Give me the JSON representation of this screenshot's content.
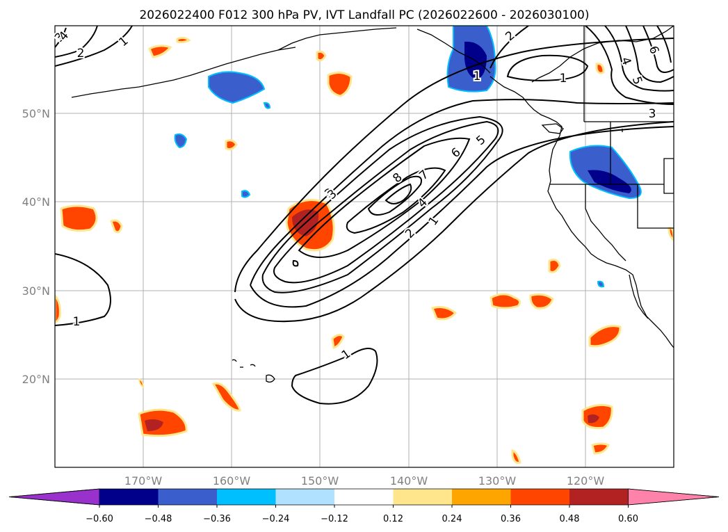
{
  "title": "2026022400 F012 300 hPa PV, IVT Landfall PC (2026022600 - 2026030100)",
  "lon_labels": [
    "170°W",
    "160°W",
    "150°W",
    "140°W",
    "130°W",
    "120°W"
  ],
  "lat_labels": [
    "50°N",
    "40°N",
    "30°N",
    "20°N"
  ],
  "colorbar": {
    "colors": [
      "#9932cc",
      "#00008b",
      "#3a5fcd",
      "#00bfff",
      "#b0e2ff",
      "#ffffff",
      "#ffe68c",
      "#ffa500",
      "#ff4500",
      "#b22222",
      "#ff82ab"
    ],
    "ticks": [
      "−0.60",
      "−0.48",
      "−0.36",
      "−0.24",
      "−0.12",
      "0.12",
      "0.24",
      "0.36",
      "0.48",
      "0.60"
    ]
  },
  "contour_labels": [
    "1",
    "2",
    "3",
    "4",
    "5",
    "6",
    "7",
    "8",
    "1",
    "2",
    "3",
    "4",
    "5",
    "6",
    "1",
    "1",
    "1",
    "2",
    "3",
    "4",
    "1",
    "3"
  ]
}
